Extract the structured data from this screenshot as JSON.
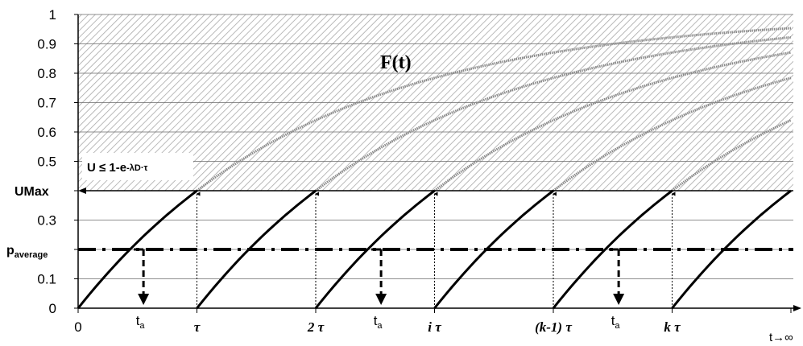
{
  "chart_data": {
    "type": "line",
    "title": "",
    "ylim": [
      0,
      1
    ],
    "ygrid_step": 0.1,
    "grid": true,
    "y_ticks": [
      "1",
      "0.9",
      "0.8",
      "0.7",
      "0.6",
      "0.5",
      "UMax",
      "0.3",
      "paverage",
      "0.1",
      "0"
    ],
    "y_tick_values": [
      1,
      0.9,
      0.8,
      0.7,
      0.6,
      0.5,
      0.4,
      0.3,
      0.2,
      0.1,
      0
    ],
    "x_ticks": [
      {
        "label": "0",
        "t": 0
      },
      {
        "label": "τ",
        "t": 1
      },
      {
        "label": "2 τ",
        "t": 2
      },
      {
        "label": "i τ",
        "t": 3
      },
      {
        "label": "(k-1) τ",
        "t": 4
      },
      {
        "label": "k τ",
        "t": 5
      }
    ],
    "x_axis_end_label": "t→∞",
    "umax": 0.4,
    "p_average": 0.2,
    "p_average_label": {
      "main": "p",
      "sub": "average"
    },
    "umax_label": "UMax",
    "curve_label": "F(t)",
    "shaded_region_label": {
      "main": "U ≤ 1-e",
      "sup": "-λD·τ"
    },
    "ta_label": {
      "main": "t",
      "sub": "a"
    },
    "ta_positions_t": [
      0.55,
      2.55,
      4.55
    ],
    "shaded_region": {
      "from": 0.4,
      "to": 1,
      "pattern": "diagonal-hatch"
    },
    "sawtooth_start_t": [
      0,
      1,
      2,
      3,
      4,
      5
    ],
    "continuation_end_values": [
      0.96,
      0.93,
      0.88,
      0.79,
      0.64
    ]
  }
}
